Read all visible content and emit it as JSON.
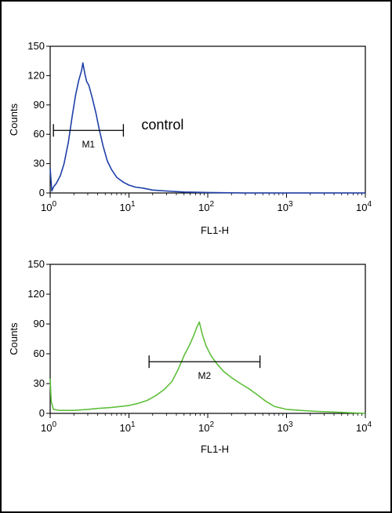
{
  "chart_data": [
    {
      "type": "line",
      "title": "",
      "xlabel": "FL1-H",
      "ylabel": "Counts",
      "x_scale": "log",
      "xlim": [
        1,
        10000
      ],
      "ylim": [
        0,
        150
      ],
      "y_ticks": [
        0,
        30,
        60,
        90,
        120,
        150
      ],
      "x_ticks": [
        {
          "base": "10",
          "exp": "0"
        },
        {
          "base": "10",
          "exp": "1"
        },
        {
          "base": "10",
          "exp": "2"
        },
        {
          "base": "10",
          "exp": "3"
        },
        {
          "base": "10",
          "exp": "4"
        }
      ],
      "annotation": "control",
      "color": "#1f3fa8",
      "marker": {
        "label": "M1",
        "x_start": 1.1,
        "x_end": 8.5,
        "y": 64
      },
      "series": [
        {
          "x": [
            1.0,
            1.05,
            1.1,
            1.2,
            1.35,
            1.5,
            1.7,
            1.9,
            2.1,
            2.3,
            2.5,
            2.6,
            2.75,
            2.9,
            3.1,
            3.4,
            3.8,
            4.2,
            4.7,
            5.3,
            6.0,
            7.0,
            8.5,
            10,
            12,
            15,
            20,
            30,
            50,
            100,
            300,
            1000,
            10000
          ],
          "y": [
            25,
            2,
            6,
            10,
            18,
            30,
            52,
            78,
            100,
            115,
            125,
            133,
            122,
            114,
            110,
            98,
            82,
            65,
            48,
            33,
            24,
            16,
            11,
            8,
            6,
            5,
            3,
            2,
            1,
            0.5,
            0,
            0,
            0
          ]
        }
      ]
    },
    {
      "type": "line",
      "title": "",
      "xlabel": "FL1-H",
      "ylabel": "Counts",
      "x_scale": "log",
      "xlim": [
        1,
        10000
      ],
      "ylim": [
        0,
        150
      ],
      "y_ticks": [
        0,
        30,
        60,
        90,
        120,
        150
      ],
      "x_ticks": [
        {
          "base": "10",
          "exp": "0"
        },
        {
          "base": "10",
          "exp": "1"
        },
        {
          "base": "10",
          "exp": "2"
        },
        {
          "base": "10",
          "exp": "3"
        },
        {
          "base": "10",
          "exp": "4"
        }
      ],
      "annotation": "",
      "color": "#5fbf3a",
      "marker": {
        "label": "M2",
        "x_start": 18,
        "x_end": 460,
        "y": 52
      },
      "series": [
        {
          "x": [
            1.0,
            1.03,
            1.1,
            1.3,
            1.6,
            2,
            3,
            4,
            6,
            8,
            10,
            13,
            17,
            22,
            28,
            35,
            42,
            50,
            58,
            66,
            72,
            78,
            85,
            95,
            110,
            130,
            160,
            200,
            260,
            330,
            420,
            550,
            700,
            1000,
            1500,
            2500,
            5000,
            10000
          ],
          "y": [
            35,
            12,
            4,
            3,
            3,
            3,
            4,
            5,
            6,
            7,
            8,
            10,
            13,
            18,
            24,
            32,
            44,
            58,
            68,
            78,
            86,
            92,
            80,
            68,
            58,
            50,
            42,
            36,
            30,
            25,
            19,
            12,
            7,
            4,
            3,
            2,
            1,
            0
          ]
        }
      ]
    }
  ]
}
